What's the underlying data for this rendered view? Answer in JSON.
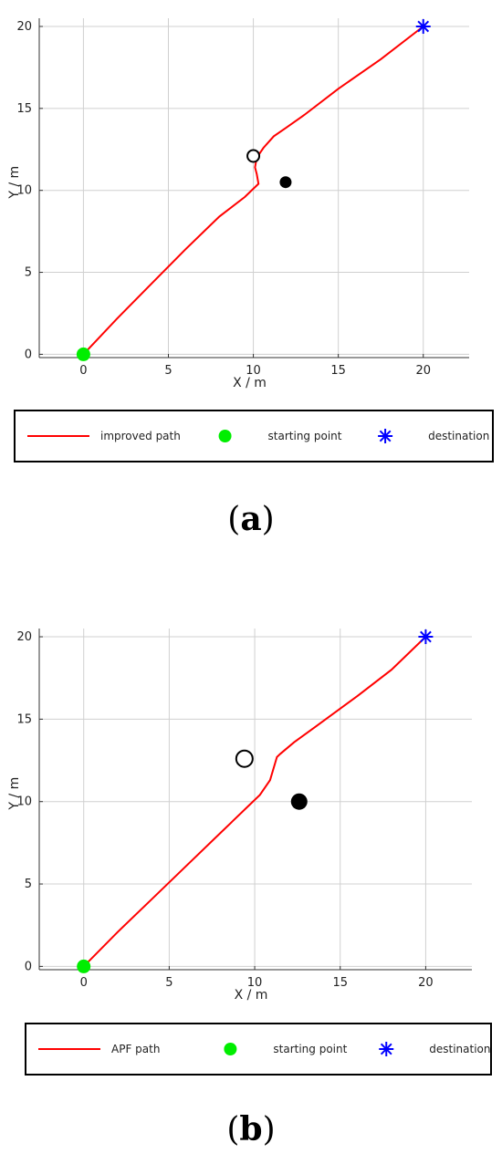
{
  "chart_data": [
    {
      "type": "line",
      "xlabel": "X / m",
      "ylabel": "Y / m",
      "xlim": [
        -2.6,
        22.7
      ],
      "ylim": [
        -0.2,
        20.5
      ],
      "xticks": [
        0,
        5,
        10,
        15,
        20
      ],
      "yticks": [
        0,
        5,
        10,
        15,
        20
      ],
      "grid": true,
      "series": [
        {
          "name": "improved path",
          "color": "#ff0000",
          "x": [
            0,
            2,
            4,
            6,
            8,
            9.5,
            10,
            10.3,
            10.2,
            10.1,
            10.2,
            10.6,
            11.2,
            11.9,
            13,
            15,
            17.5,
            20
          ],
          "y": [
            0,
            2.2,
            4.3,
            6.4,
            8.4,
            9.6,
            10.1,
            10.4,
            11.0,
            11.4,
            12.0,
            12.6,
            13.3,
            13.8,
            14.6,
            16.2,
            18.0,
            20
          ]
        }
      ],
      "obstacles": [
        {
          "x": 10.0,
          "y": 12.1,
          "fill": "hollow",
          "size": "small"
        },
        {
          "x": 11.9,
          "y": 10.5,
          "fill": "solid",
          "size": "small"
        }
      ],
      "start": {
        "x": 0,
        "y": 0,
        "color": "#00ee00"
      },
      "goal": {
        "x": 20,
        "y": 20,
        "color": "#0000ff"
      },
      "legend": {
        "placement": "bottom",
        "entries": [
          "improved path",
          "starting point",
          "destination"
        ]
      },
      "caption": [
        "(",
        "a",
        ")"
      ]
    },
    {
      "type": "line",
      "xlabel": "X / m",
      "ylabel": "Y / m",
      "xlim": [
        -2.6,
        22.7
      ],
      "ylim": [
        -0.2,
        20.5
      ],
      "xticks": [
        0,
        5,
        10,
        15,
        20
      ],
      "yticks": [
        0,
        5,
        10,
        15,
        20
      ],
      "grid": true,
      "series": [
        {
          "name": "APF path",
          "color": "#ff0000",
          "x": [
            0,
            2,
            4,
            6,
            8,
            9.5,
            10.3,
            10.9,
            11.3,
            11.5,
            12.3,
            13.5,
            16,
            18,
            20
          ],
          "y": [
            0,
            2.1,
            4.1,
            6.1,
            8.1,
            9.6,
            10.4,
            11.3,
            12.7,
            12.9,
            13.6,
            14.5,
            16.4,
            18.0,
            20
          ]
        }
      ],
      "obstacles": [
        {
          "x": 9.4,
          "y": 12.6,
          "fill": "hollow",
          "size": "large"
        },
        {
          "x": 12.6,
          "y": 10.0,
          "fill": "solid",
          "size": "large"
        }
      ],
      "start": {
        "x": 0,
        "y": 0,
        "color": "#00ee00"
      },
      "goal": {
        "x": 20,
        "y": 20,
        "color": "#0000ff"
      },
      "legend": {
        "placement": "bottom",
        "entries": [
          "APF path",
          "starting point",
          "destination"
        ]
      },
      "caption": [
        "(",
        "b",
        ")"
      ]
    }
  ]
}
